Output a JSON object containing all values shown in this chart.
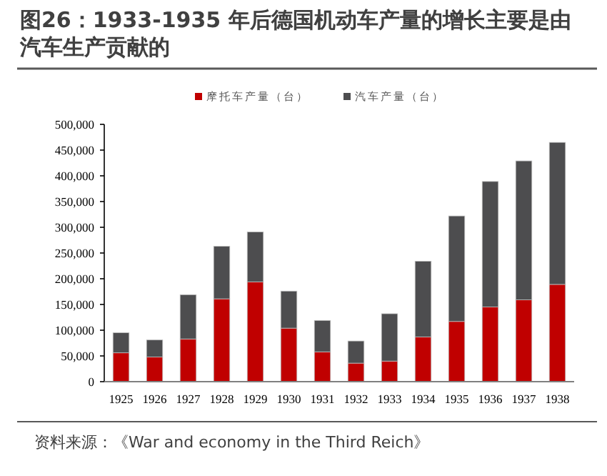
{
  "chart_data": {
    "type": "bar",
    "stacked": true,
    "title": "图26：1933-1935 年后德国机动车产量的增长主要是由汽车生产贡献的",
    "categories": [
      "1925",
      "1926",
      "1927",
      "1928",
      "1929",
      "1930",
      "1931",
      "1932",
      "1933",
      "1934",
      "1935",
      "1936",
      "1937",
      "1938"
    ],
    "series": [
      {
        "name": "摩托车产量（台）",
        "color": "#c00000",
        "values": [
          56000,
          48000,
          83000,
          161000,
          194000,
          104000,
          58000,
          36000,
          40000,
          87000,
          117000,
          145000,
          159000,
          189000
        ]
      },
      {
        "name": "汽车产量（台）",
        "color": "#4d4d4f",
        "values": [
          39000,
          33000,
          86000,
          102000,
          97000,
          72000,
          61000,
          43000,
          92000,
          147000,
          205000,
          244000,
          270000,
          276000
        ]
      }
    ],
    "ylim": [
      0,
      500000
    ],
    "yticks": [
      0,
      {
        "value": 50000,
        "label": "50,000"
      },
      {
        "value": 100000,
        "label": "100,000"
      },
      {
        "value": 150000,
        "label": "150,000"
      },
      {
        "value": 200000,
        "label": "200,000"
      },
      {
        "value": 250000,
        "label": "250,000"
      },
      {
        "value": 300000,
        "label": "300,000"
      },
      {
        "value": 350000,
        "label": "350,000"
      },
      {
        "value": 400000,
        "label": "400,000"
      },
      {
        "value": 450000,
        "label": "450,000"
      },
      {
        "value": 500000,
        "label": "500,000"
      }
    ],
    "legend": "top",
    "annotations": [
      "资料来源：《War and economy in the Third Reich》"
    ]
  }
}
